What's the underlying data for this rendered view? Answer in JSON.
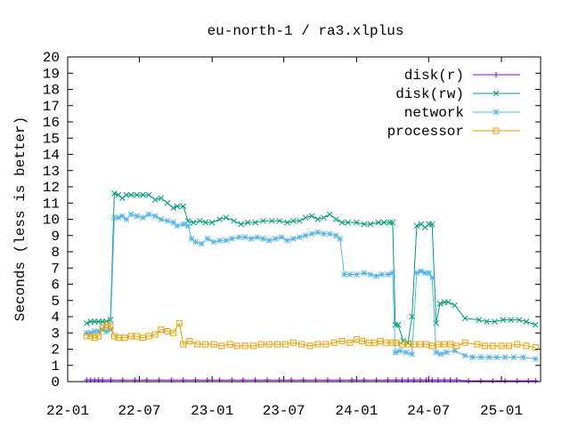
{
  "chart_data": {
    "type": "line",
    "title": "eu-north-1 / ra3.xlplus",
    "xlabel": "",
    "ylabel": "Seconds (less is better)",
    "ylim": [
      0,
      20
    ],
    "yticks": [
      0,
      1,
      2,
      3,
      4,
      5,
      6,
      7,
      8,
      9,
      10,
      11,
      12,
      13,
      14,
      15,
      16,
      17,
      18,
      19,
      20
    ],
    "xlim": [
      "2022-01-01",
      "2025-04-10"
    ],
    "xticks": [
      {
        "date": "2022-01-01",
        "label": "22-01"
      },
      {
        "date": "2022-07-01",
        "label": "22-07"
      },
      {
        "date": "2023-01-01",
        "label": "23-01"
      },
      {
        "date": "2023-07-01",
        "label": "23-07"
      },
      {
        "date": "2024-01-01",
        "label": "24-01"
      },
      {
        "date": "2024-07-01",
        "label": "24-07"
      },
      {
        "date": "2025-01-01",
        "label": "25-01"
      }
    ],
    "grid": false,
    "legend_position": "top-right",
    "series": [
      {
        "name": "disk(r)",
        "color": "#9400d3",
        "marker": "plus",
        "points": [
          [
            "2022-02-18",
            0.1
          ],
          [
            "2022-02-28",
            0.1
          ],
          [
            "2022-03-10",
            0.1
          ],
          [
            "2022-03-20",
            0.1
          ],
          [
            "2022-03-30",
            0.1
          ],
          [
            "2022-04-20",
            0.1
          ],
          [
            "2022-05-20",
            0.1
          ],
          [
            "2022-06-20",
            0.1
          ],
          [
            "2022-07-20",
            0.1
          ],
          [
            "2022-08-20",
            0.1
          ],
          [
            "2022-09-20",
            0.1
          ],
          [
            "2022-10-20",
            0.1
          ],
          [
            "2022-11-20",
            0.1
          ],
          [
            "2022-12-20",
            0.1
          ],
          [
            "2023-01-20",
            0.1
          ],
          [
            "2023-02-20",
            0.1
          ],
          [
            "2023-03-20",
            0.1
          ],
          [
            "2023-04-20",
            0.1
          ],
          [
            "2023-05-20",
            0.1
          ],
          [
            "2023-06-20",
            0.1
          ],
          [
            "2023-07-20",
            0.1
          ],
          [
            "2023-08-20",
            0.1
          ],
          [
            "2023-09-20",
            0.1
          ],
          [
            "2023-10-20",
            0.1
          ],
          [
            "2023-11-20",
            0.1
          ],
          [
            "2023-12-20",
            0.1
          ],
          [
            "2024-01-20",
            0.1
          ],
          [
            "2024-02-20",
            0.1
          ],
          [
            "2024-03-20",
            0.1
          ],
          [
            "2024-04-10",
            0.1
          ],
          [
            "2024-04-25",
            0.1
          ],
          [
            "2024-05-10",
            0.1
          ],
          [
            "2024-05-25",
            0.1
          ],
          [
            "2024-06-10",
            0.1
          ],
          [
            "2024-06-25",
            0.1
          ],
          [
            "2024-07-10",
            0.1
          ],
          [
            "2024-07-25",
            0.1
          ],
          [
            "2024-08-10",
            0.1
          ],
          [
            "2024-08-25",
            0.1
          ],
          [
            "2024-09-10",
            0.1
          ],
          [
            "2024-10-10",
            0.05
          ],
          [
            "2024-11-10",
            0.05
          ],
          [
            "2024-12-10",
            0.05
          ],
          [
            "2025-01-10",
            0.05
          ],
          [
            "2025-02-10",
            0.05
          ],
          [
            "2025-03-10",
            0.05
          ],
          [
            "2025-03-28",
            0.05
          ]
        ]
      },
      {
        "name": "disk(rw)",
        "color": "#009e73",
        "marker": "cross",
        "points": [
          [
            "2022-02-18",
            3.6
          ],
          [
            "2022-02-28",
            3.7
          ],
          [
            "2022-03-10",
            3.7
          ],
          [
            "2022-03-20",
            3.7
          ],
          [
            "2022-03-30",
            3.7
          ],
          [
            "2022-04-09",
            3.7
          ],
          [
            "2022-04-19",
            3.8
          ],
          [
            "2022-04-29",
            11.6
          ],
          [
            "2022-05-09",
            11.5
          ],
          [
            "2022-05-19",
            11.3
          ],
          [
            "2022-05-29",
            11.5
          ],
          [
            "2022-06-10",
            11.5
          ],
          [
            "2022-06-25",
            11.5
          ],
          [
            "2022-07-10",
            11.5
          ],
          [
            "2022-07-25",
            11.5
          ],
          [
            "2022-08-10",
            11.2
          ],
          [
            "2022-08-25",
            11.3
          ],
          [
            "2022-09-10",
            11.0
          ],
          [
            "2022-09-25",
            10.7
          ],
          [
            "2022-10-05",
            10.8
          ],
          [
            "2022-10-20",
            10.8
          ],
          [
            "2022-11-01",
            9.9
          ],
          [
            "2022-11-15",
            9.8
          ],
          [
            "2022-12-01",
            9.9
          ],
          [
            "2022-12-15",
            9.8
          ],
          [
            "2023-01-01",
            9.8
          ],
          [
            "2023-01-20",
            10.0
          ],
          [
            "2023-02-05",
            10.1
          ],
          [
            "2023-02-25",
            9.9
          ],
          [
            "2023-03-15",
            9.7
          ],
          [
            "2023-04-01",
            9.8
          ],
          [
            "2023-04-20",
            9.8
          ],
          [
            "2023-05-10",
            9.9
          ],
          [
            "2023-06-01",
            9.9
          ],
          [
            "2023-06-20",
            9.9
          ],
          [
            "2023-07-10",
            9.8
          ],
          [
            "2023-07-25",
            9.9
          ],
          [
            "2023-08-10",
            9.9
          ],
          [
            "2023-08-25",
            10.1
          ],
          [
            "2023-09-10",
            10.2
          ],
          [
            "2023-09-25",
            10.0
          ],
          [
            "2023-10-10",
            10.1
          ],
          [
            "2023-10-25",
            10.3
          ],
          [
            "2023-11-10",
            10.0
          ],
          [
            "2023-11-25",
            9.8
          ],
          [
            "2023-12-10",
            9.8
          ],
          [
            "2024-01-01",
            9.8
          ],
          [
            "2024-01-20",
            9.7
          ],
          [
            "2024-02-05",
            9.7
          ],
          [
            "2024-02-25",
            9.8
          ],
          [
            "2024-03-10",
            9.8
          ],
          [
            "2024-03-25",
            9.8
          ],
          [
            "2024-04-01",
            9.8
          ],
          [
            "2024-04-08",
            3.5
          ],
          [
            "2024-04-15",
            3.5
          ],
          [
            "2024-04-28",
            2.5
          ],
          [
            "2024-05-10",
            2.4
          ],
          [
            "2024-05-20",
            4.0
          ],
          [
            "2024-06-01",
            9.6
          ],
          [
            "2024-06-12",
            9.7
          ],
          [
            "2024-06-22",
            9.5
          ],
          [
            "2024-07-02",
            9.7
          ],
          [
            "2024-07-10",
            9.7
          ],
          [
            "2024-07-20",
            3.6
          ],
          [
            "2024-07-30",
            4.8
          ],
          [
            "2024-08-10",
            4.9
          ],
          [
            "2024-08-20",
            4.9
          ],
          [
            "2024-09-05",
            4.7
          ],
          [
            "2024-10-01",
            3.9
          ],
          [
            "2024-11-05",
            3.8
          ],
          [
            "2024-11-25",
            3.7
          ],
          [
            "2024-12-15",
            3.7
          ],
          [
            "2025-01-05",
            3.8
          ],
          [
            "2025-01-25",
            3.8
          ],
          [
            "2025-02-15",
            3.8
          ],
          [
            "2025-03-05",
            3.7
          ],
          [
            "2025-03-28",
            3.5
          ]
        ]
      },
      {
        "name": "network",
        "color": "#56b4e9",
        "marker": "star",
        "points": [
          [
            "2022-02-18",
            3.0
          ],
          [
            "2022-02-28",
            3.0
          ],
          [
            "2022-03-10",
            3.1
          ],
          [
            "2022-03-20",
            3.1
          ],
          [
            "2022-03-30",
            3.2
          ],
          [
            "2022-04-09",
            3.1
          ],
          [
            "2022-04-19",
            3.2
          ],
          [
            "2022-04-29",
            10.1
          ],
          [
            "2022-05-09",
            10.1
          ],
          [
            "2022-05-19",
            10.2
          ],
          [
            "2022-05-29",
            10.0
          ],
          [
            "2022-06-10",
            10.3
          ],
          [
            "2022-06-25",
            10.2
          ],
          [
            "2022-07-10",
            10.1
          ],
          [
            "2022-07-25",
            10.3
          ],
          [
            "2022-08-10",
            10.2
          ],
          [
            "2022-08-25",
            10.0
          ],
          [
            "2022-09-10",
            9.9
          ],
          [
            "2022-09-25",
            9.8
          ],
          [
            "2022-10-05",
            9.6
          ],
          [
            "2022-10-20",
            9.7
          ],
          [
            "2022-11-01",
            9.6
          ],
          [
            "2022-11-10",
            8.8
          ],
          [
            "2022-11-20",
            8.6
          ],
          [
            "2022-12-05",
            8.5
          ],
          [
            "2022-12-20",
            8.8
          ],
          [
            "2023-01-05",
            8.6
          ],
          [
            "2023-01-20",
            8.7
          ],
          [
            "2023-02-05",
            8.7
          ],
          [
            "2023-02-20",
            8.8
          ],
          [
            "2023-03-10",
            8.9
          ],
          [
            "2023-03-25",
            8.9
          ],
          [
            "2023-04-10",
            8.8
          ],
          [
            "2023-04-25",
            8.9
          ],
          [
            "2023-05-10",
            8.8
          ],
          [
            "2023-05-25",
            8.7
          ],
          [
            "2023-06-10",
            8.8
          ],
          [
            "2023-06-25",
            8.9
          ],
          [
            "2023-07-10",
            8.7
          ],
          [
            "2023-07-25",
            8.8
          ],
          [
            "2023-08-10",
            8.9
          ],
          [
            "2023-08-25",
            9.0
          ],
          [
            "2023-09-10",
            9.1
          ],
          [
            "2023-09-25",
            9.2
          ],
          [
            "2023-10-10",
            9.1
          ],
          [
            "2023-10-25",
            9.1
          ],
          [
            "2023-11-10",
            9.0
          ],
          [
            "2023-11-20",
            8.8
          ],
          [
            "2023-12-01",
            6.6
          ],
          [
            "2023-12-15",
            6.6
          ],
          [
            "2024-01-01",
            6.6
          ],
          [
            "2024-01-20",
            6.7
          ],
          [
            "2024-02-05",
            6.6
          ],
          [
            "2024-02-20",
            6.5
          ],
          [
            "2024-03-05",
            6.6
          ],
          [
            "2024-03-20",
            6.6
          ],
          [
            "2024-04-01",
            6.7
          ],
          [
            "2024-04-08",
            1.8
          ],
          [
            "2024-04-20",
            1.9
          ],
          [
            "2024-05-05",
            1.8
          ],
          [
            "2024-05-20",
            1.7
          ],
          [
            "2024-06-01",
            6.7
          ],
          [
            "2024-06-12",
            6.8
          ],
          [
            "2024-06-22",
            6.7
          ],
          [
            "2024-07-02",
            6.7
          ],
          [
            "2024-07-10",
            6.4
          ],
          [
            "2024-07-20",
            1.8
          ],
          [
            "2024-08-01",
            1.7
          ],
          [
            "2024-08-15",
            1.8
          ],
          [
            "2024-09-05",
            1.9
          ],
          [
            "2024-10-01",
            1.6
          ],
          [
            "2024-10-20",
            1.5
          ],
          [
            "2024-11-10",
            1.5
          ],
          [
            "2024-12-01",
            1.5
          ],
          [
            "2024-12-20",
            1.5
          ],
          [
            "2025-01-10",
            1.5
          ],
          [
            "2025-02-01",
            1.5
          ],
          [
            "2025-02-25",
            1.5
          ],
          [
            "2025-03-28",
            1.4
          ]
        ]
      },
      {
        "name": "processor",
        "color": "#e69f00",
        "marker": "square",
        "points": [
          [
            "2022-02-18",
            2.8
          ],
          [
            "2022-02-28",
            2.8
          ],
          [
            "2022-03-10",
            2.7
          ],
          [
            "2022-03-20",
            2.8
          ],
          [
            "2022-03-30",
            3.3
          ],
          [
            "2022-04-09",
            3.5
          ],
          [
            "2022-04-19",
            3.4
          ],
          [
            "2022-04-29",
            2.8
          ],
          [
            "2022-05-09",
            2.7
          ],
          [
            "2022-05-25",
            2.7
          ],
          [
            "2022-06-10",
            2.8
          ],
          [
            "2022-06-25",
            2.8
          ],
          [
            "2022-07-10",
            2.7
          ],
          [
            "2022-07-25",
            2.8
          ],
          [
            "2022-08-10",
            2.9
          ],
          [
            "2022-08-25",
            3.2
          ],
          [
            "2022-09-10",
            3.1
          ],
          [
            "2022-09-25",
            3.0
          ],
          [
            "2022-10-10",
            3.6
          ],
          [
            "2022-10-20",
            2.3
          ],
          [
            "2022-11-05",
            2.5
          ],
          [
            "2022-11-25",
            2.3
          ],
          [
            "2022-12-15",
            2.3
          ],
          [
            "2023-01-05",
            2.3
          ],
          [
            "2023-01-25",
            2.2
          ],
          [
            "2023-02-15",
            2.3
          ],
          [
            "2023-03-05",
            2.2
          ],
          [
            "2023-03-25",
            2.2
          ],
          [
            "2023-04-15",
            2.2
          ],
          [
            "2023-05-05",
            2.3
          ],
          [
            "2023-05-25",
            2.3
          ],
          [
            "2023-06-15",
            2.3
          ],
          [
            "2023-07-05",
            2.3
          ],
          [
            "2023-07-25",
            2.4
          ],
          [
            "2023-08-15",
            2.3
          ],
          [
            "2023-09-05",
            2.2
          ],
          [
            "2023-09-25",
            2.3
          ],
          [
            "2023-10-15",
            2.3
          ],
          [
            "2023-11-05",
            2.4
          ],
          [
            "2023-11-25",
            2.5
          ],
          [
            "2023-12-15",
            2.4
          ],
          [
            "2024-01-01",
            2.6
          ],
          [
            "2024-01-15",
            2.5
          ],
          [
            "2024-02-01",
            2.4
          ],
          [
            "2024-02-15",
            2.4
          ],
          [
            "2024-03-01",
            2.5
          ],
          [
            "2024-03-15",
            2.4
          ],
          [
            "2024-04-01",
            2.4
          ],
          [
            "2024-04-10",
            2.4
          ],
          [
            "2024-04-25",
            2.3
          ],
          [
            "2024-05-10",
            2.3
          ],
          [
            "2024-05-25",
            2.3
          ],
          [
            "2024-06-10",
            2.3
          ],
          [
            "2024-06-25",
            2.3
          ],
          [
            "2024-07-10",
            2.2
          ],
          [
            "2024-07-25",
            2.3
          ],
          [
            "2024-08-10",
            2.3
          ],
          [
            "2024-08-25",
            2.3
          ],
          [
            "2024-09-10",
            2.2
          ],
          [
            "2024-10-01",
            2.4
          ],
          [
            "2024-11-01",
            2.3
          ],
          [
            "2024-11-20",
            2.2
          ],
          [
            "2024-12-10",
            2.2
          ],
          [
            "2025-01-01",
            2.2
          ],
          [
            "2025-01-20",
            2.2
          ],
          [
            "2025-02-10",
            2.3
          ],
          [
            "2025-03-05",
            2.2
          ],
          [
            "2025-03-28",
            2.1
          ]
        ]
      }
    ]
  }
}
